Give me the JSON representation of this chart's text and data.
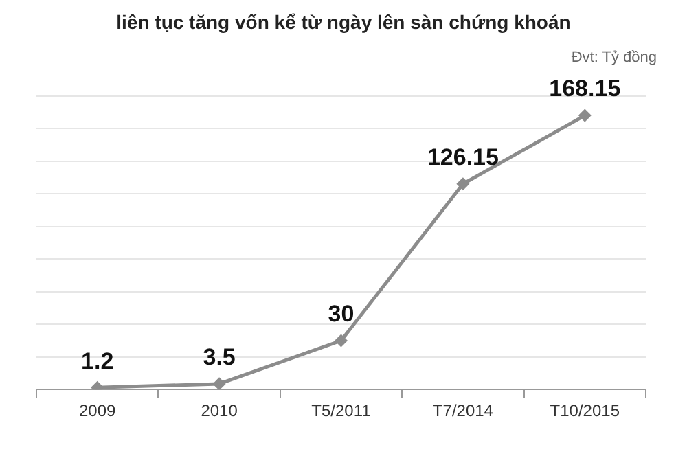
{
  "chart_data": {
    "type": "line",
    "title": "liên tục tăng vốn kể từ ngày lên sàn chứng khoán",
    "annotations": [
      "Đvt: Tỷ đồng"
    ],
    "categories": [
      "2009",
      "2010",
      "T5/2011",
      "T7/2014",
      "T10/2015"
    ],
    "series": [
      {
        "color": "#8c8c8c",
        "values": [
          1.2,
          3.5,
          30,
          126.15,
          168.15
        ]
      }
    ],
    "ylim": [
      0,
      180
    ],
    "yticks": [
      {
        "value": 0,
        "label": null
      },
      {
        "value": 20,
        "label": null
      },
      {
        "value": 40,
        "label": null
      },
      {
        "value": 60,
        "label": null
      },
      {
        "value": 80,
        "label": null
      },
      {
        "value": 100,
        "label": null
      },
      {
        "value": 120,
        "label": null
      },
      {
        "value": 140,
        "label": null
      },
      {
        "value": 160,
        "label": null
      },
      {
        "value": 180,
        "label": null
      }
    ],
    "grid": "y",
    "tick_labels": "x",
    "marker": "diamond",
    "line_style": "solid",
    "data_labels": true,
    "legend": false
  }
}
